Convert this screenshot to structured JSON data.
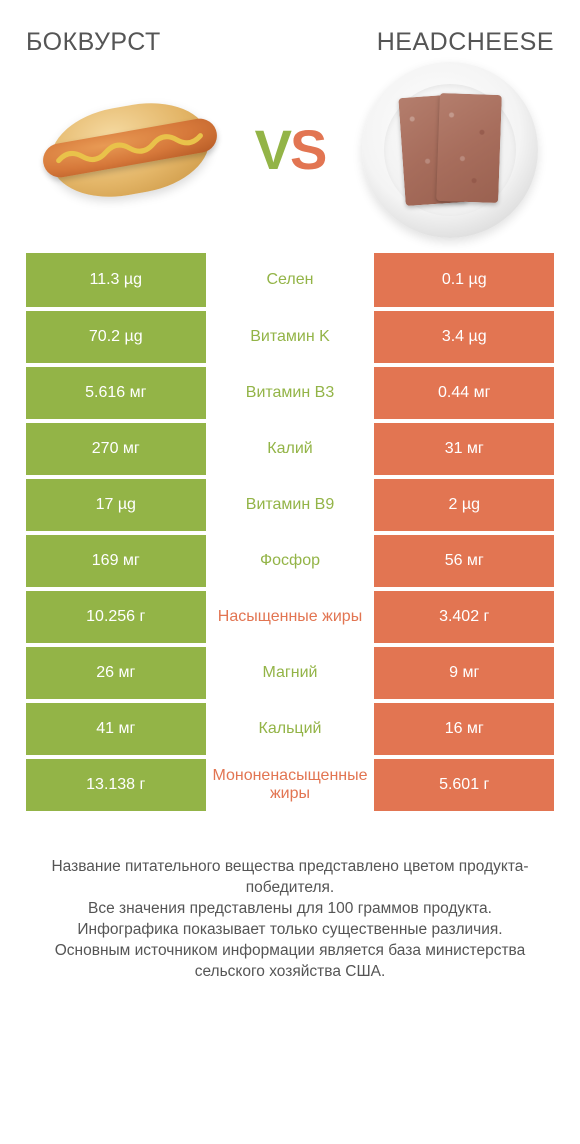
{
  "colors": {
    "green": "#93b447",
    "orange": "#e27552",
    "text": "#555555",
    "white": "#ffffff"
  },
  "product_left": {
    "title": "БОКВУРСТ"
  },
  "product_right": {
    "title": "HEADCHEESE"
  },
  "vs": {
    "v": "V",
    "s": "S"
  },
  "rows": [
    {
      "left": "11.3 µg",
      "label": "Селен",
      "right": "0.1 µg",
      "winner": "left"
    },
    {
      "left": "70.2 µg",
      "label": "Витамин K",
      "right": "3.4 µg",
      "winner": "left"
    },
    {
      "left": "5.616 мг",
      "label": "Витамин B3",
      "right": "0.44 мг",
      "winner": "left"
    },
    {
      "left": "270 мг",
      "label": "Калий",
      "right": "31 мг",
      "winner": "left"
    },
    {
      "left": "17 µg",
      "label": "Витамин B9",
      "right": "2 µg",
      "winner": "left"
    },
    {
      "left": "169 мг",
      "label": "Фосфор",
      "right": "56 мг",
      "winner": "left"
    },
    {
      "left": "10.256 г",
      "label": "Насыщенные жиры",
      "right": "3.402 г",
      "winner": "right"
    },
    {
      "left": "26 мг",
      "label": "Магний",
      "right": "9 мг",
      "winner": "left"
    },
    {
      "left": "41 мг",
      "label": "Кальций",
      "right": "16 мг",
      "winner": "left"
    },
    {
      "left": "13.138 г",
      "label": "Мононенасыщенные жиры",
      "right": "5.601 г",
      "winner": "right"
    }
  ],
  "footnote": "Название питательного вещества представлено цветом продукта-победителя.\nВсе значения представлены для 100 граммов продукта.\nИнфографика показывает только существенные различия.\nОсновным источником информации является база министерства сельского хозяйства США."
}
